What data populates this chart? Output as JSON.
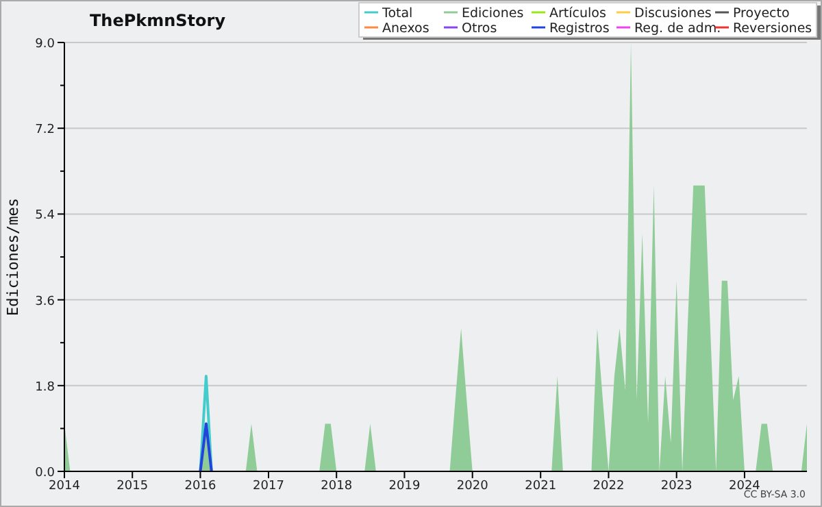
{
  "chart_data": {
    "type": "line",
    "title": "ThePkmnStory",
    "ylabel": "Ediciones/mes",
    "xlim": [
      "2014-01",
      "2024-12"
    ],
    "xticks": [
      {
        "value": "2014",
        "label": "2014"
      },
      {
        "value": "2015",
        "label": "2015"
      },
      {
        "value": "2016",
        "label": "2016"
      },
      {
        "value": "2017",
        "label": "2017"
      },
      {
        "value": "2018",
        "label": "2018"
      },
      {
        "value": "2019",
        "label": "2019"
      },
      {
        "value": "2020",
        "label": "2020"
      },
      {
        "value": "2021",
        "label": "2021"
      },
      {
        "value": "2022",
        "label": "2022"
      },
      {
        "value": "2023",
        "label": "2023"
      },
      {
        "value": "2024",
        "label": "2024"
      }
    ],
    "ylim": [
      0,
      9
    ],
    "yticks": [
      {
        "value": 0,
        "label": "0.0"
      },
      {
        "value": 0.9,
        "label": null
      },
      {
        "value": 1.8,
        "label": "1.8"
      },
      {
        "value": 2.7,
        "label": null
      },
      {
        "value": 3.6,
        "label": "3.6"
      },
      {
        "value": 4.5,
        "label": null
      },
      {
        "value": 5.4,
        "label": "5.4"
      },
      {
        "value": 6.3,
        "label": null
      },
      {
        "value": 7.2,
        "label": "7.2"
      },
      {
        "value": 8.1,
        "label": null
      },
      {
        "value": 9,
        "label": "9.0"
      }
    ],
    "grid": "y",
    "legend": "top right",
    "annotations": [
      "CC BY-SA 3.0"
    ],
    "series": [
      {
        "name": "Total",
        "color": "#44cccc",
        "x": [
          "2016-01",
          "2016-02",
          "2016-03"
        ],
        "values": [
          0,
          2,
          0
        ]
      },
      {
        "name": "Ediciones",
        "type": "area",
        "color": "#90cc98",
        "x": [
          "2014-01",
          "2014-02",
          "2016-01",
          "2016-02",
          "2016-03",
          "2016-09",
          "2016-10",
          "2016-11",
          "2017-10",
          "2017-11",
          "2017-12",
          "2018-01",
          "2018-06",
          "2018-07",
          "2018-08",
          "2019-09",
          "2019-10",
          "2019-11",
          "2019-12",
          "2020-01",
          "2021-03",
          "2021-04",
          "2021-05",
          "2021-10",
          "2021-11",
          "2021-12",
          "2022-01",
          "2022-02",
          "2022-03",
          "2022-04",
          "2022-05",
          "2022-06",
          "2022-07",
          "2022-08",
          "2022-09",
          "2022-10",
          "2022-11",
          "2022-12",
          "2023-01",
          "2023-02",
          "2023-03",
          "2023-04",
          "2023-05",
          "2023-06",
          "2023-07",
          "2023-08",
          "2023-09",
          "2023-10",
          "2023-11",
          "2023-12",
          "2024-01",
          "2024-03",
          "2024-04",
          "2024-05",
          "2024-06",
          "2024-11",
          "2024-12"
        ],
        "values": [
          1,
          0,
          0,
          1,
          0,
          0,
          1,
          0,
          0,
          1,
          1,
          0,
          0,
          1,
          0,
          0,
          1.5,
          3,
          1.5,
          0,
          0,
          2,
          0,
          0,
          3,
          1.5,
          0,
          2,
          3,
          1.7,
          9,
          1.5,
          5,
          1,
          6,
          0,
          2,
          0.6,
          4,
          0,
          3,
          6,
          6,
          6,
          3,
          0,
          4,
          4,
          1.5,
          2,
          0,
          0,
          1,
          1,
          0,
          0,
          1
        ]
      },
      {
        "name": "Artículos",
        "color": "#99e619"
      },
      {
        "name": "Discusiones",
        "color": "#ffcc44"
      },
      {
        "name": "Proyecto",
        "color": "#555555"
      },
      {
        "name": "Anexos",
        "color": "#ff8844"
      },
      {
        "name": "Otros",
        "color": "#8844ee"
      },
      {
        "name": "Registros",
        "color": "#2244dd",
        "x": [
          "2016-01",
          "2016-02",
          "2016-03"
        ],
        "values": [
          0,
          1,
          0
        ]
      },
      {
        "name": "Reg. de adm.",
        "color": "#ee44ee"
      },
      {
        "name": "Reversiones",
        "color": "#ee3333"
      }
    ]
  }
}
